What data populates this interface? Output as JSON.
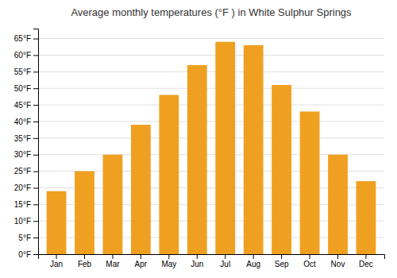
{
  "chart_data": {
    "type": "bar",
    "title": "Average monthly temperatures (°F ) in White Sulphur Springs",
    "categories": [
      "Jan",
      "Feb",
      "Mar",
      "Apr",
      "May",
      "Jun",
      "Jul",
      "Aug",
      "Sep",
      "Oct",
      "Nov",
      "Dec"
    ],
    "values": [
      19,
      25,
      30,
      39,
      48,
      57,
      64,
      63,
      51,
      43,
      30,
      22
    ],
    "color": "#F0A020",
    "ylim": [
      0,
      68
    ],
    "yticks": [
      {
        "value": 0,
        "label": "0°F"
      },
      {
        "value": 5,
        "label": "5°F"
      },
      {
        "value": 10,
        "label": "10°F"
      },
      {
        "value": 15,
        "label": "15°F"
      },
      {
        "value": 20,
        "label": "20°F"
      },
      {
        "value": 25,
        "label": "25°F"
      },
      {
        "value": 30,
        "label": "30°F"
      },
      {
        "value": 35,
        "label": "35°F"
      },
      {
        "value": 40,
        "label": "40°F"
      },
      {
        "value": 45,
        "label": "45°F"
      },
      {
        "value": 50,
        "label": "50°F"
      },
      {
        "value": 55,
        "label": "55°F"
      },
      {
        "value": 60,
        "label": "60°F"
      },
      {
        "value": 65,
        "label": "65°F"
      }
    ],
    "grid": true
  }
}
